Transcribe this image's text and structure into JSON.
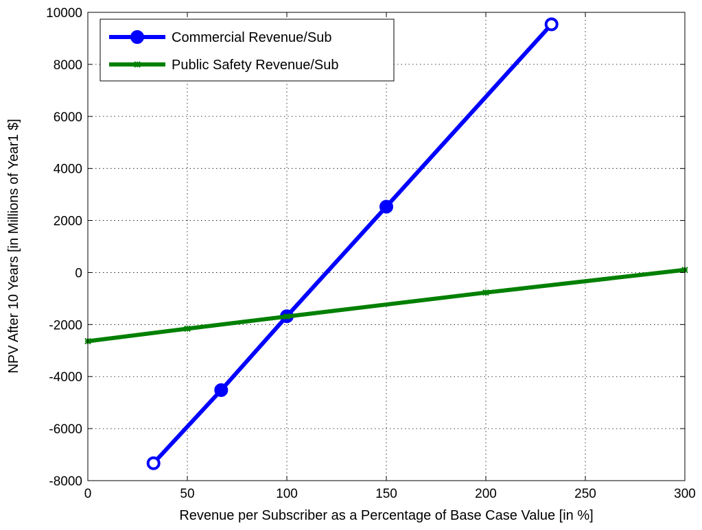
{
  "chart_data": {
    "type": "line",
    "title": "",
    "xlabel": "Revenue per Subscriber as a Percentage of Base Case Value [in %]",
    "ylabel": "NPV After 10 Years [in Millions of Year1 $]",
    "xlim": [
      0,
      300
    ],
    "ylim": [
      -8000,
      10000
    ],
    "xticks": [
      0,
      50,
      100,
      150,
      200,
      250,
      300
    ],
    "yticks": [
      -8000,
      -6000,
      -4000,
      -2000,
      0,
      2000,
      4000,
      6000,
      8000,
      10000
    ],
    "grid": true,
    "legend_position": "top-left",
    "series": [
      {
        "name": "Commercial Revenue/Sub",
        "color": "#0000ff",
        "marker": "circle",
        "x": [
          33,
          67,
          100,
          150,
          233
        ],
        "y": [
          -7330,
          -4520,
          -1680,
          2530,
          9540
        ]
      },
      {
        "name": "Public Safety Revenue/Sub",
        "color": "#008000",
        "marker": "asterisk",
        "x": [
          0,
          50,
          100,
          200,
          300
        ],
        "y": [
          -2640,
          -2160,
          -1690,
          -770,
          100
        ]
      }
    ]
  }
}
